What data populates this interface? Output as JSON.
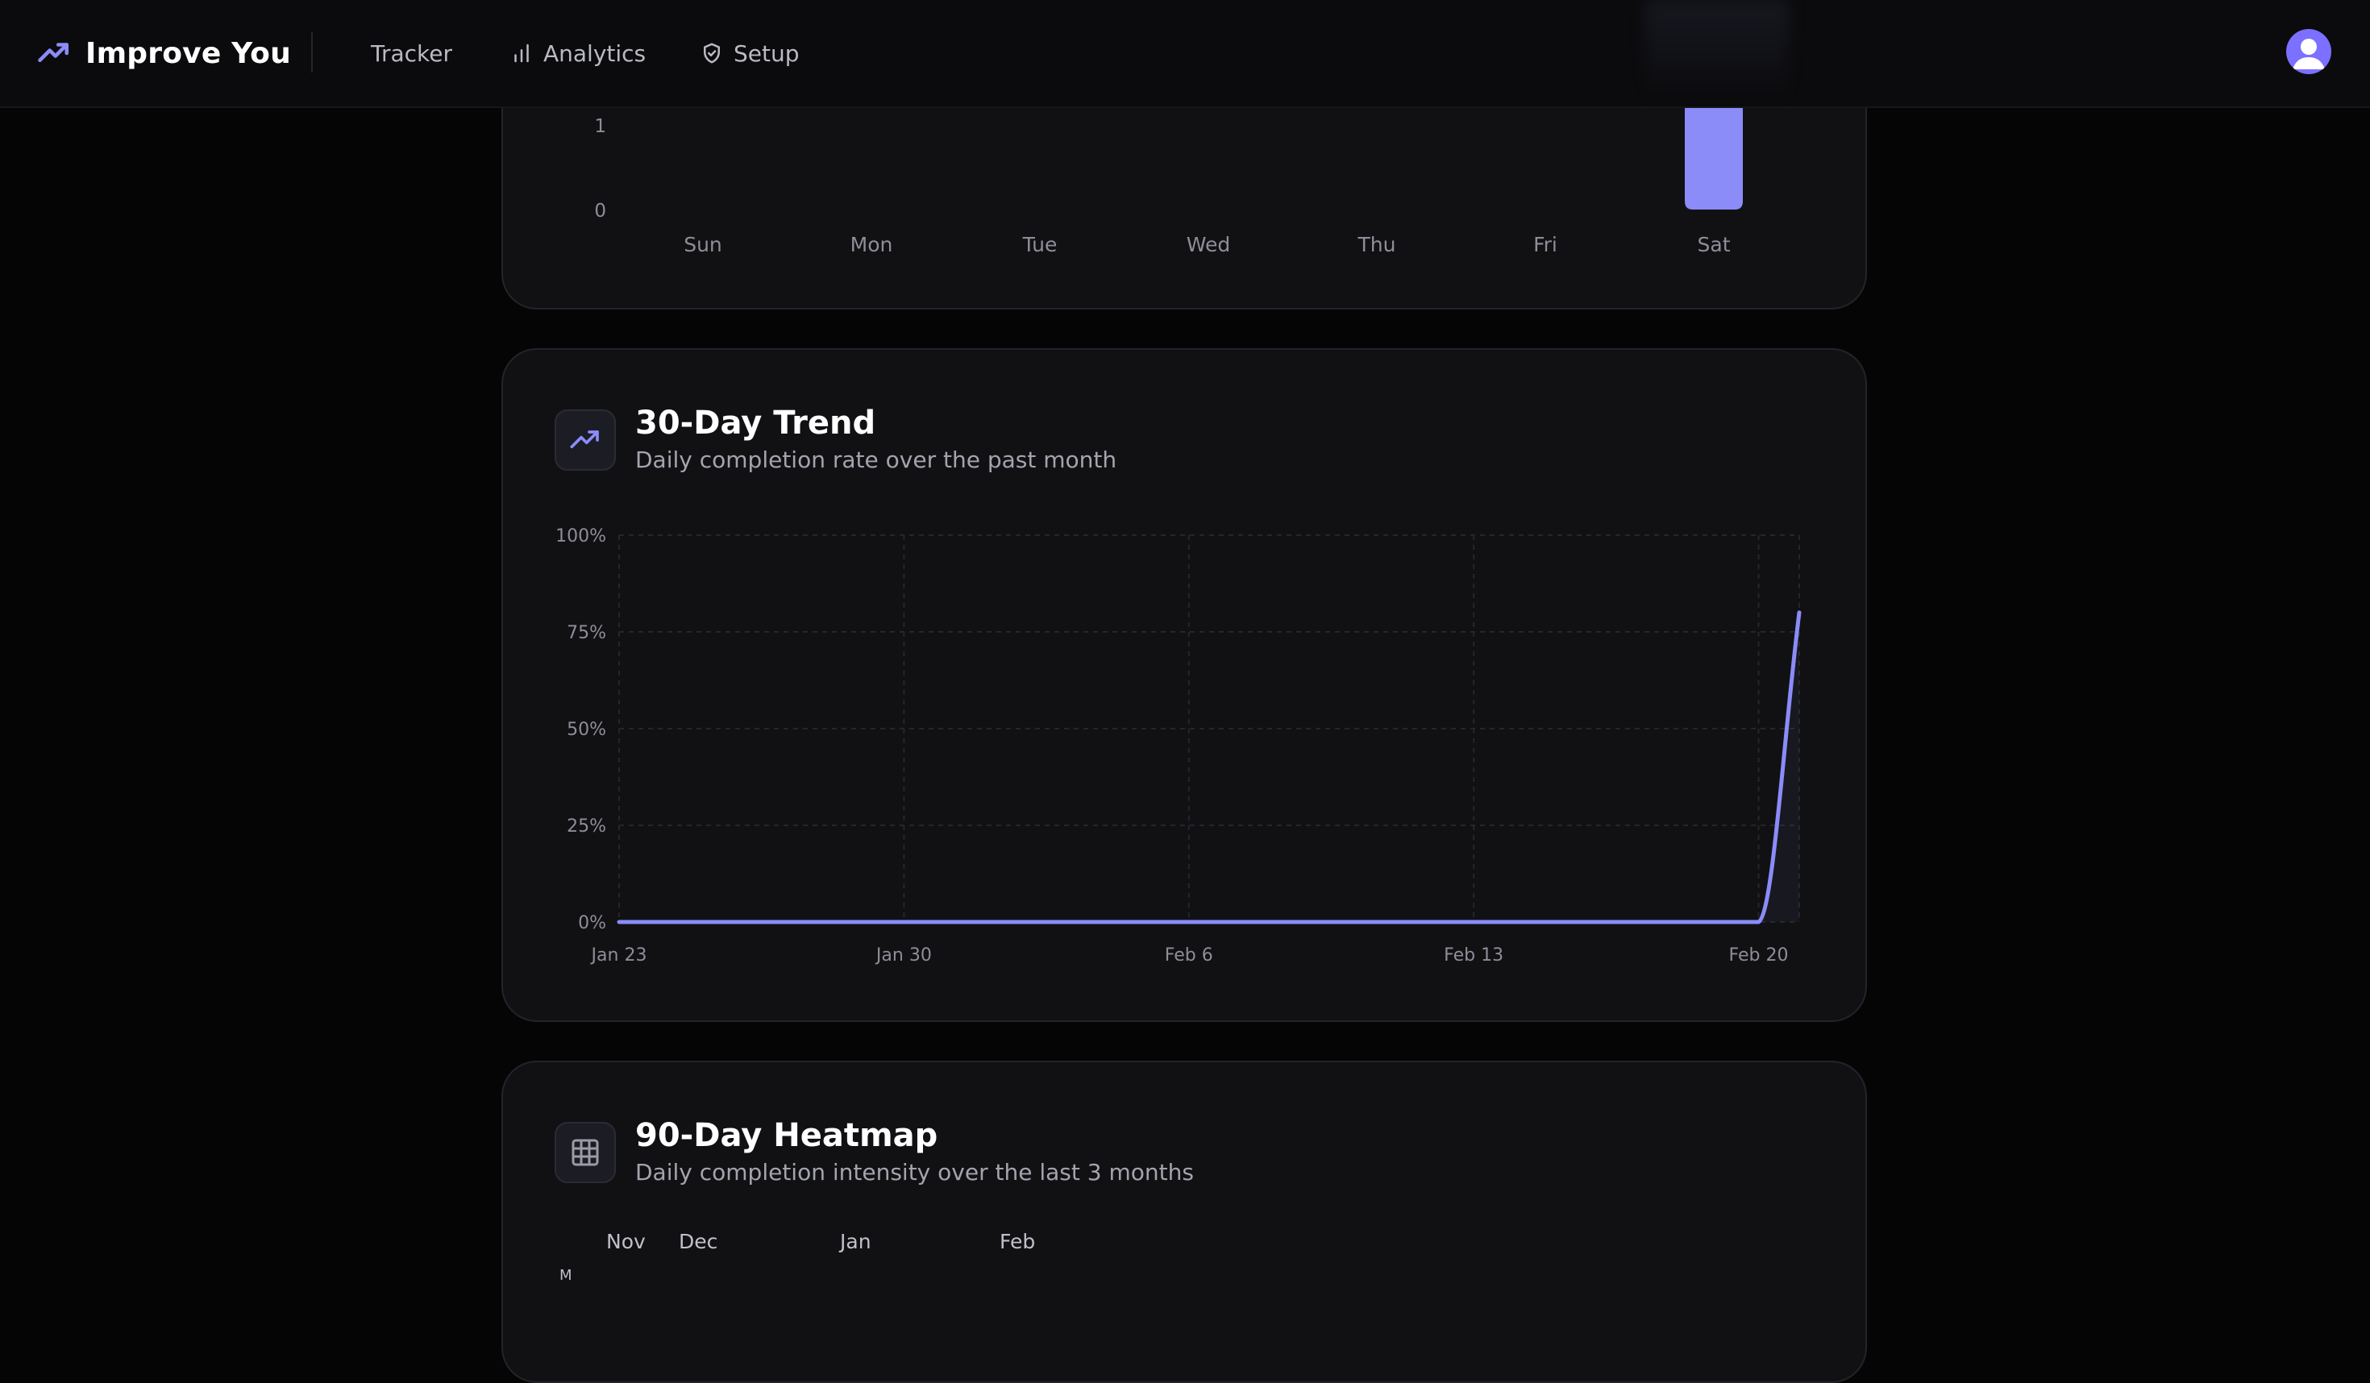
{
  "nav": {
    "brand": "Improve You",
    "items": [
      {
        "label": "Tracker",
        "icon": "none"
      },
      {
        "label": "Analytics",
        "icon": "bar-chart-icon"
      },
      {
        "label": "Setup",
        "icon": "shield-icon"
      }
    ],
    "avatar_icon": "user-icon"
  },
  "colors": {
    "accent": "#8b8cf8",
    "background": "#050506",
    "card": "#111114"
  },
  "weekly_card": {
    "y_ticks": [
      "1",
      "0"
    ],
    "days": [
      "Sun",
      "Mon",
      "Tue",
      "Wed",
      "Thu",
      "Fri",
      "Sat"
    ]
  },
  "trend_card": {
    "title": "30-Day Trend",
    "subtitle": "Daily completion rate over the past month",
    "icon": "trending-up-icon"
  },
  "heatmap_card": {
    "title": "90-Day Heatmap",
    "subtitle": "Daily completion intensity over the last 3 months",
    "icon": "grid-icon",
    "months": [
      "Nov",
      "Dec",
      "Jan",
      "Feb"
    ],
    "row_label": "M"
  },
  "chart_data": [
    {
      "type": "bar",
      "title": "",
      "categories": [
        "Sun",
        "Mon",
        "Tue",
        "Wed",
        "Thu",
        "Fri",
        "Sat"
      ],
      "values": [
        0,
        0,
        0,
        0,
        0,
        0,
        1.2
      ],
      "yticks": [
        0,
        1
      ],
      "xlabel": "",
      "ylabel": ""
    },
    {
      "type": "area",
      "title": "30-Day Trend",
      "x": [
        "Jan 23",
        "Jan 30",
        "Feb 6",
        "Feb 13",
        "Feb 20",
        "Feb 21"
      ],
      "x_tick_labels": [
        "Jan 23",
        "Jan 30",
        "Feb 6",
        "Feb 13",
        "Feb 20"
      ],
      "series": [
        {
          "name": "Completion rate",
          "values": [
            0,
            0,
            0,
            0,
            0,
            80
          ]
        }
      ],
      "y_tick_labels": [
        "0%",
        "25%",
        "50%",
        "75%",
        "100%"
      ],
      "ylim": [
        0,
        100
      ],
      "grid": true,
      "xlabel": "",
      "ylabel": ""
    }
  ]
}
